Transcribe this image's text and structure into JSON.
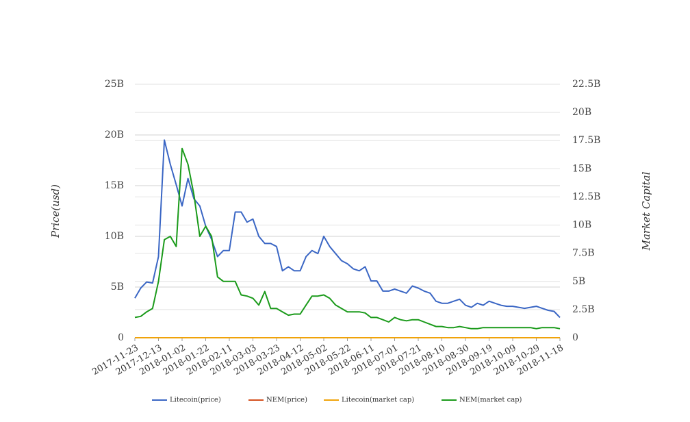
{
  "chart_data": {
    "type": "line",
    "y_label": "Price(usd)",
    "y2_label": "Market Capital",
    "x": [
      "2017-11-23",
      "2017-11-28",
      "2017-12-03",
      "2017-12-08",
      "2017-12-13",
      "2017-12-18",
      "2017-12-23",
      "2017-12-28",
      "2018-01-02",
      "2018-01-07",
      "2018-01-12",
      "2018-01-17",
      "2018-01-22",
      "2018-01-27",
      "2018-02-01",
      "2018-02-06",
      "2018-02-11",
      "2018-02-16",
      "2018-02-21",
      "2018-02-26",
      "2018-03-03",
      "2018-03-08",
      "2018-03-13",
      "2018-03-18",
      "2018-03-23",
      "2018-03-28",
      "2018-04-02",
      "2018-04-07",
      "2018-04-12",
      "2018-04-17",
      "2018-04-22",
      "2018-04-27",
      "2018-05-02",
      "2018-05-07",
      "2018-05-12",
      "2018-05-17",
      "2018-05-22",
      "2018-05-27",
      "2018-06-01",
      "2018-06-06",
      "2018-06-11",
      "2018-06-16",
      "2018-06-21",
      "2018-06-26",
      "2018-07-01",
      "2018-07-06",
      "2018-07-11",
      "2018-07-16",
      "2018-07-21",
      "2018-07-26",
      "2018-07-31",
      "2018-08-05",
      "2018-08-10",
      "2018-08-15",
      "2018-08-20",
      "2018-08-25",
      "2018-08-30",
      "2018-09-04",
      "2018-09-09",
      "2018-09-14",
      "2018-09-19",
      "2018-09-24",
      "2018-09-29",
      "2018-10-04",
      "2018-10-09",
      "2018-10-14",
      "2018-10-19",
      "2018-10-24",
      "2018-10-29",
      "2018-11-03",
      "2018-11-08",
      "2018-11-13",
      "2018-11-18"
    ],
    "xlim": [
      "2017-11-23",
      "2018-11-18"
    ],
    "xticks": [
      "2017-11-23",
      "2017-12-13",
      "2018-01-02",
      "2018-01-22",
      "2018-02-11",
      "2018-03-03",
      "2018-03-23",
      "2018-04-12",
      "2018-05-02",
      "2018-05-22",
      "2018-06-11",
      "2018-07-01",
      "2018-07-21",
      "2018-08-10",
      "2018-08-30",
      "2018-09-19",
      "2018-10-09",
      "2018-10-29",
      "2018-11-18"
    ],
    "ylim": [
      0,
      25000000000.0
    ],
    "yticks": [
      0,
      {
        "value": 5000000000.0,
        "label": "5B"
      },
      {
        "value": 10000000000.0,
        "label": "10B"
      },
      {
        "value": 15000000000.0,
        "label": "15B"
      },
      {
        "value": 20000000000.0,
        "label": "20B"
      },
      {
        "value": 25000000000.0,
        "label": "25B"
      }
    ],
    "y2lim": [
      0,
      22500000000.0
    ],
    "y2ticks": [
      0,
      {
        "value": 2500000000.0,
        "label": "2.5B"
      },
      {
        "value": 5000000000.0,
        "label": "5B"
      },
      {
        "value": 7500000000.0,
        "label": "7.5B"
      },
      {
        "value": 10000000000.0,
        "label": "10B"
      },
      {
        "value": 12500000000.0,
        "label": "12.5B"
      },
      {
        "value": 15000000000.0,
        "label": "15B"
      },
      {
        "value": 17500000000.0,
        "label": "17.5B"
      },
      {
        "value": 20000000000.0,
        "label": "20B"
      },
      {
        "value": 22500000000.0,
        "label": "22.5B"
      }
    ],
    "grid": true,
    "series": [
      {
        "name": "Litecoin(price)",
        "color": "#3a66c4",
        "axis": "y",
        "values": [
          3900000000.0,
          4900000000.0,
          5500000000.0,
          5400000000.0,
          8000000000.0,
          19500000000.0,
          17100000000.0,
          15100000000.0,
          13000000000.0,
          15700000000.0,
          13700000000.0,
          13000000000.0,
          11000000000.0,
          9700000000.0,
          8000000000.0,
          8600000000.0,
          8600000000.0,
          12400000000.0,
          12400000000.0,
          11400000000.0,
          11700000000.0,
          10000000000.0,
          9300000000.0,
          9300000000.0,
          9000000000.0,
          6600000000.0,
          7000000000.0,
          6600000000.0,
          6600000000.0,
          8000000000.0,
          8600000000.0,
          8300000000.0,
          10000000000.0,
          9000000000.0,
          8300000000.0,
          7600000000.0,
          7300000000.0,
          6800000000.0,
          6600000000.0,
          7000000000.0,
          5600000000.0,
          5600000000.0,
          4600000000.0,
          4600000000.0,
          4800000000.0,
          4600000000.0,
          4400000000.0,
          5100000000.0,
          4900000000.0,
          4600000000.0,
          4400000000.0,
          3600000000.0,
          3400000000.0,
          3400000000.0,
          3600000000.0,
          3800000000.0,
          3200000000.0,
          3000000000.0,
          3400000000.0,
          3200000000.0,
          3600000000.0,
          3400000000.0,
          3200000000.0,
          3100000000.0,
          3100000000.0,
          3000000000.0,
          2900000000.0,
          3000000000.0,
          3100000000.0,
          2900000000.0,
          2700000000.0,
          2600000000.0,
          2000000000.0
        ]
      },
      {
        "name": "NEM(price)",
        "color": "#d4501e",
        "axis": "y",
        "values": [
          0,
          0,
          0,
          0,
          0,
          0,
          0,
          0,
          0,
          0,
          0,
          0,
          0,
          0,
          0,
          0,
          0,
          0,
          0,
          0,
          0,
          0,
          0,
          0,
          0,
          0,
          0,
          0,
          0,
          0,
          0,
          0,
          0,
          0,
          0,
          0,
          0,
          0,
          0,
          0,
          0,
          0,
          0,
          0,
          0,
          0,
          0,
          0,
          0,
          0,
          0,
          0,
          0,
          0,
          0,
          0,
          0,
          0,
          0,
          0,
          0,
          0,
          0,
          0,
          0,
          0,
          0,
          0,
          0,
          0,
          0,
          0,
          0
        ]
      },
      {
        "name": "Litecoin(market cap)",
        "color": "#f0a30a",
        "axis": "y2",
        "values": [
          0,
          0,
          0,
          0,
          0,
          0,
          0,
          0,
          0,
          0,
          0,
          0,
          0,
          0,
          0,
          0,
          0,
          0,
          0,
          0,
          0,
          0,
          0,
          0,
          0,
          0,
          0,
          0,
          0,
          0,
          0,
          0,
          0,
          0,
          0,
          0,
          0,
          0,
          0,
          0,
          0,
          0,
          0,
          0,
          0,
          0,
          0,
          0,
          0,
          0,
          0,
          0,
          0,
          0,
          0,
          0,
          0,
          0,
          0,
          0,
          0,
          0,
          0,
          0,
          0,
          0,
          0,
          0,
          0,
          0,
          0,
          0,
          0
        ]
      },
      {
        "name": "NEM(market cap)",
        "color": "#1a9a1a",
        "axis": "y2",
        "values": [
          1800000000.0,
          1900000000.0,
          2300000000.0,
          2600000000.0,
          5000000000.0,
          8700000000.0,
          9000000000.0,
          8100000000.0,
          16800000000.0,
          15400000000.0,
          12700000000.0,
          9000000000.0,
          9900000000.0,
          9000000000.0,
          5400000000.0,
          5000000000.0,
          5000000000.0,
          5000000000.0,
          3800000000.0,
          3700000000.0,
          3500000000.0,
          2900000000.0,
          4100000000.0,
          2600000000.0,
          2600000000.0,
          2300000000.0,
          2000000000.0,
          2100000000.0,
          2100000000.0,
          2900000000.0,
          3700000000.0,
          3700000000.0,
          3800000000.0,
          3500000000.0,
          2900000000.0,
          2600000000.0,
          2300000000.0,
          2300000000.0,
          2300000000.0,
          2200000000.0,
          1800000000.0,
          1800000000.0,
          1600000000.0,
          1400000000.0,
          1800000000.0,
          1600000000.0,
          1500000000.0,
          1600000000.0,
          1600000000.0,
          1400000000.0,
          1200000000.0,
          1000000000.0,
          1000000000.0,
          900000000.0,
          900000000.0,
          1000000000.0,
          900000000.0,
          800000000.0,
          800000000.0,
          900000000.0,
          900000000.0,
          900000000.0,
          900000000.0,
          900000000.0,
          900000000.0,
          900000000.0,
          900000000.0,
          900000000.0,
          800000000.0,
          900000000.0,
          900000000.0,
          900000000.0,
          800000000.0
        ]
      }
    ]
  }
}
